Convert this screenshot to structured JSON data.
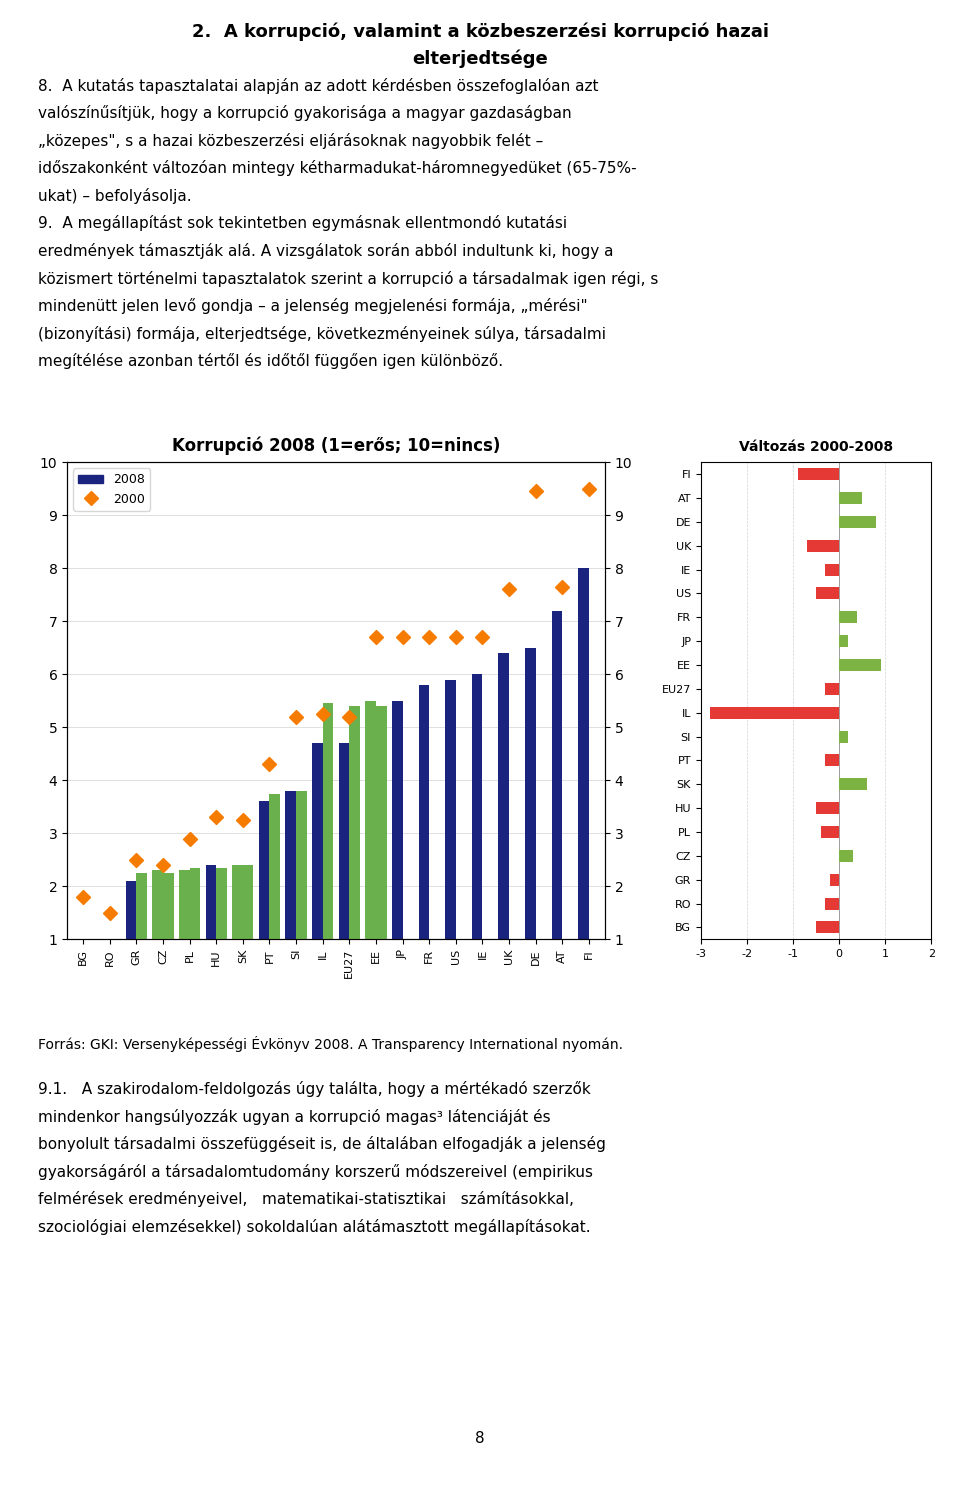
{
  "chart_data": [
    {
      "type": "bar",
      "title": "Korrupció 2008 (1=erős; 10=nincs)",
      "categories": [
        "BG",
        "RO",
        "GR",
        "CZ",
        "PL",
        "HU",
        "SK",
        "PT",
        "SI",
        "IL",
        "EU27",
        "EE",
        "JP",
        "FR",
        "US",
        "IE",
        "UK",
        "DE",
        "AT",
        "FI"
      ],
      "series": [
        {
          "name": "2008",
          "type": "bar",
          "color": "#1a237e",
          "colors": [
            "#1a237e",
            "#1a237e",
            "#1a237e",
            "#6ab04c",
            "#6ab04c",
            "#1a237e",
            "#6ab04c",
            "#1a237e",
            "#1a237e",
            "#1a237e",
            "#1a237e",
            "#6ab04c",
            "#1a237e",
            "#1a237e",
            "#1a237e",
            "#1a237e",
            "#1a237e",
            "#1a237e",
            "#1a237e",
            "#1a237e"
          ],
          "values": [
            1.0,
            1.0,
            2.1,
            2.3,
            2.3,
            2.4,
            2.4,
            3.6,
            3.8,
            4.7,
            4.7,
            5.5,
            5.5,
            5.8,
            5.9,
            6.0,
            6.4,
            6.5,
            7.2,
            8.0
          ]
        },
        {
          "type": "bar",
          "color": "#6ab04c",
          "values": [
            null,
            null,
            2.25,
            2.25,
            2.35,
            2.35,
            2.4,
            3.75,
            3.8,
            5.45,
            5.4,
            5.4,
            null,
            null,
            null,
            null,
            null,
            null,
            null,
            null
          ]
        },
        {
          "name": "2000",
          "type": "scatter",
          "marker": "D",
          "color": "#f57c00",
          "values": [
            1.8,
            1.5,
            2.5,
            2.4,
            2.9,
            3.3,
            3.25,
            4.3,
            5.2,
            5.25,
            5.2,
            6.7,
            6.7,
            6.7,
            6.7,
            6.7,
            7.6,
            9.45,
            7.65,
            9.5
          ]
        }
      ],
      "ylim": [
        1,
        10
      ],
      "yticks": [
        1,
        2,
        3,
        4,
        5,
        6,
        7,
        8,
        9,
        10
      ],
      "y2lim": [
        1,
        10
      ],
      "y2ticks": [
        1,
        2,
        3,
        4,
        5,
        6,
        7,
        8,
        9,
        10
      ],
      "grid": true,
      "legend": "upper left",
      "annotations": [
        "2.  A korrupció, valamint a közbeszerzési korrupció hazai",
        "elterjedtsége",
        "8.  A kutatás tapasztalatai alapján az adott kérdésben összefoglalóan azt",
        "valószínűsítjük, hogy a korrupció gyakorisága a magyar gazdaságban",
        "„közepes\", s a hazai közbeszerzési eljárásoknak nagyobbik felét –",
        "időszakonként változóan mintegy kétharmadukat-háromnegyedüket (65-75%-",
        "ukat) – befolyásolja.",
        "9.  A megállapítást sok tekintetben egymásnak ellentmondó kutatási",
        "eredmények támasztják alá. A vizsgálatok során abból indultunk ki, hogy a",
        "közismert történelmi tapasztalatok szerint a korrupció a társadalmak igen régi, s",
        "mindenütt jelen levő gondja – a jelenség megjelenési formája, „mérési\"",
        "(bizonyítási) formája, elterjedtsége, következményeinek súlya, társadalmi",
        "megítélése azonban tértől és időtől függően igen különböző."
      ]
    },
    {
      "type": "bar",
      "orientation": "horizontal",
      "title": "Változás 2000-2008",
      "categories": [
        "FI",
        "AT",
        "DE",
        "UK",
        "IE",
        "US",
        "FR",
        "JP",
        "EE",
        "EU27",
        "IL",
        "SI",
        "PT",
        "SK",
        "HU",
        "PL",
        "CZ",
        "GR",
        "RO",
        "BG"
      ],
      "values": [
        -0.9,
        0.5,
        0.8,
        -0.7,
        -0.3,
        -0.5,
        0.4,
        0.2,
        0.9,
        -0.3,
        -2.8,
        0.2,
        -0.3,
        0.6,
        -0.5,
        -0.4,
        0.3,
        -0.2,
        -0.3,
        -0.5
      ],
      "colors": [
        "#e53935",
        "#7cb342",
        "#7cb342",
        "#e53935",
        "#e53935",
        "#e53935",
        "#7cb342",
        "#7cb342",
        "#7cb342",
        "#e53935",
        "#e53935",
        "#7cb342",
        "#e53935",
        "#7cb342",
        "#e53935",
        "#e53935",
        "#7cb342",
        "#e53935",
        "#e53935",
        "#e53935"
      ],
      "xlim": [
        -3,
        2
      ],
      "xticks": [
        -3,
        -2,
        -1,
        0,
        1,
        2
      ],
      "grid": true,
      "annotations": [
        "Forrás: GKI: Versenyképességi Évkönyv 2008. A Transparency International nyomán.",
        "9.1.   A szakirodalom-feldolgozás úgy találta, hogy a mértékadó szerzők",
        "mindenkor hangsúlyozzák ugyan a korrupció magas³ látenciáját és",
        "bonyolult társadalmi összefüggéseit is, de általában elfogadják a jelenség",
        "gyakorságáról a társadalomtudomány korszerű módszereivel (empirikus",
        "felmérések eredményeivel,   matematikai-statisztikai   számításokkal,",
        "szociológiai elemzésekkel) sokoldalúan alátámasztott megállapításokat.",
        "8"
      ]
    }
  ]
}
